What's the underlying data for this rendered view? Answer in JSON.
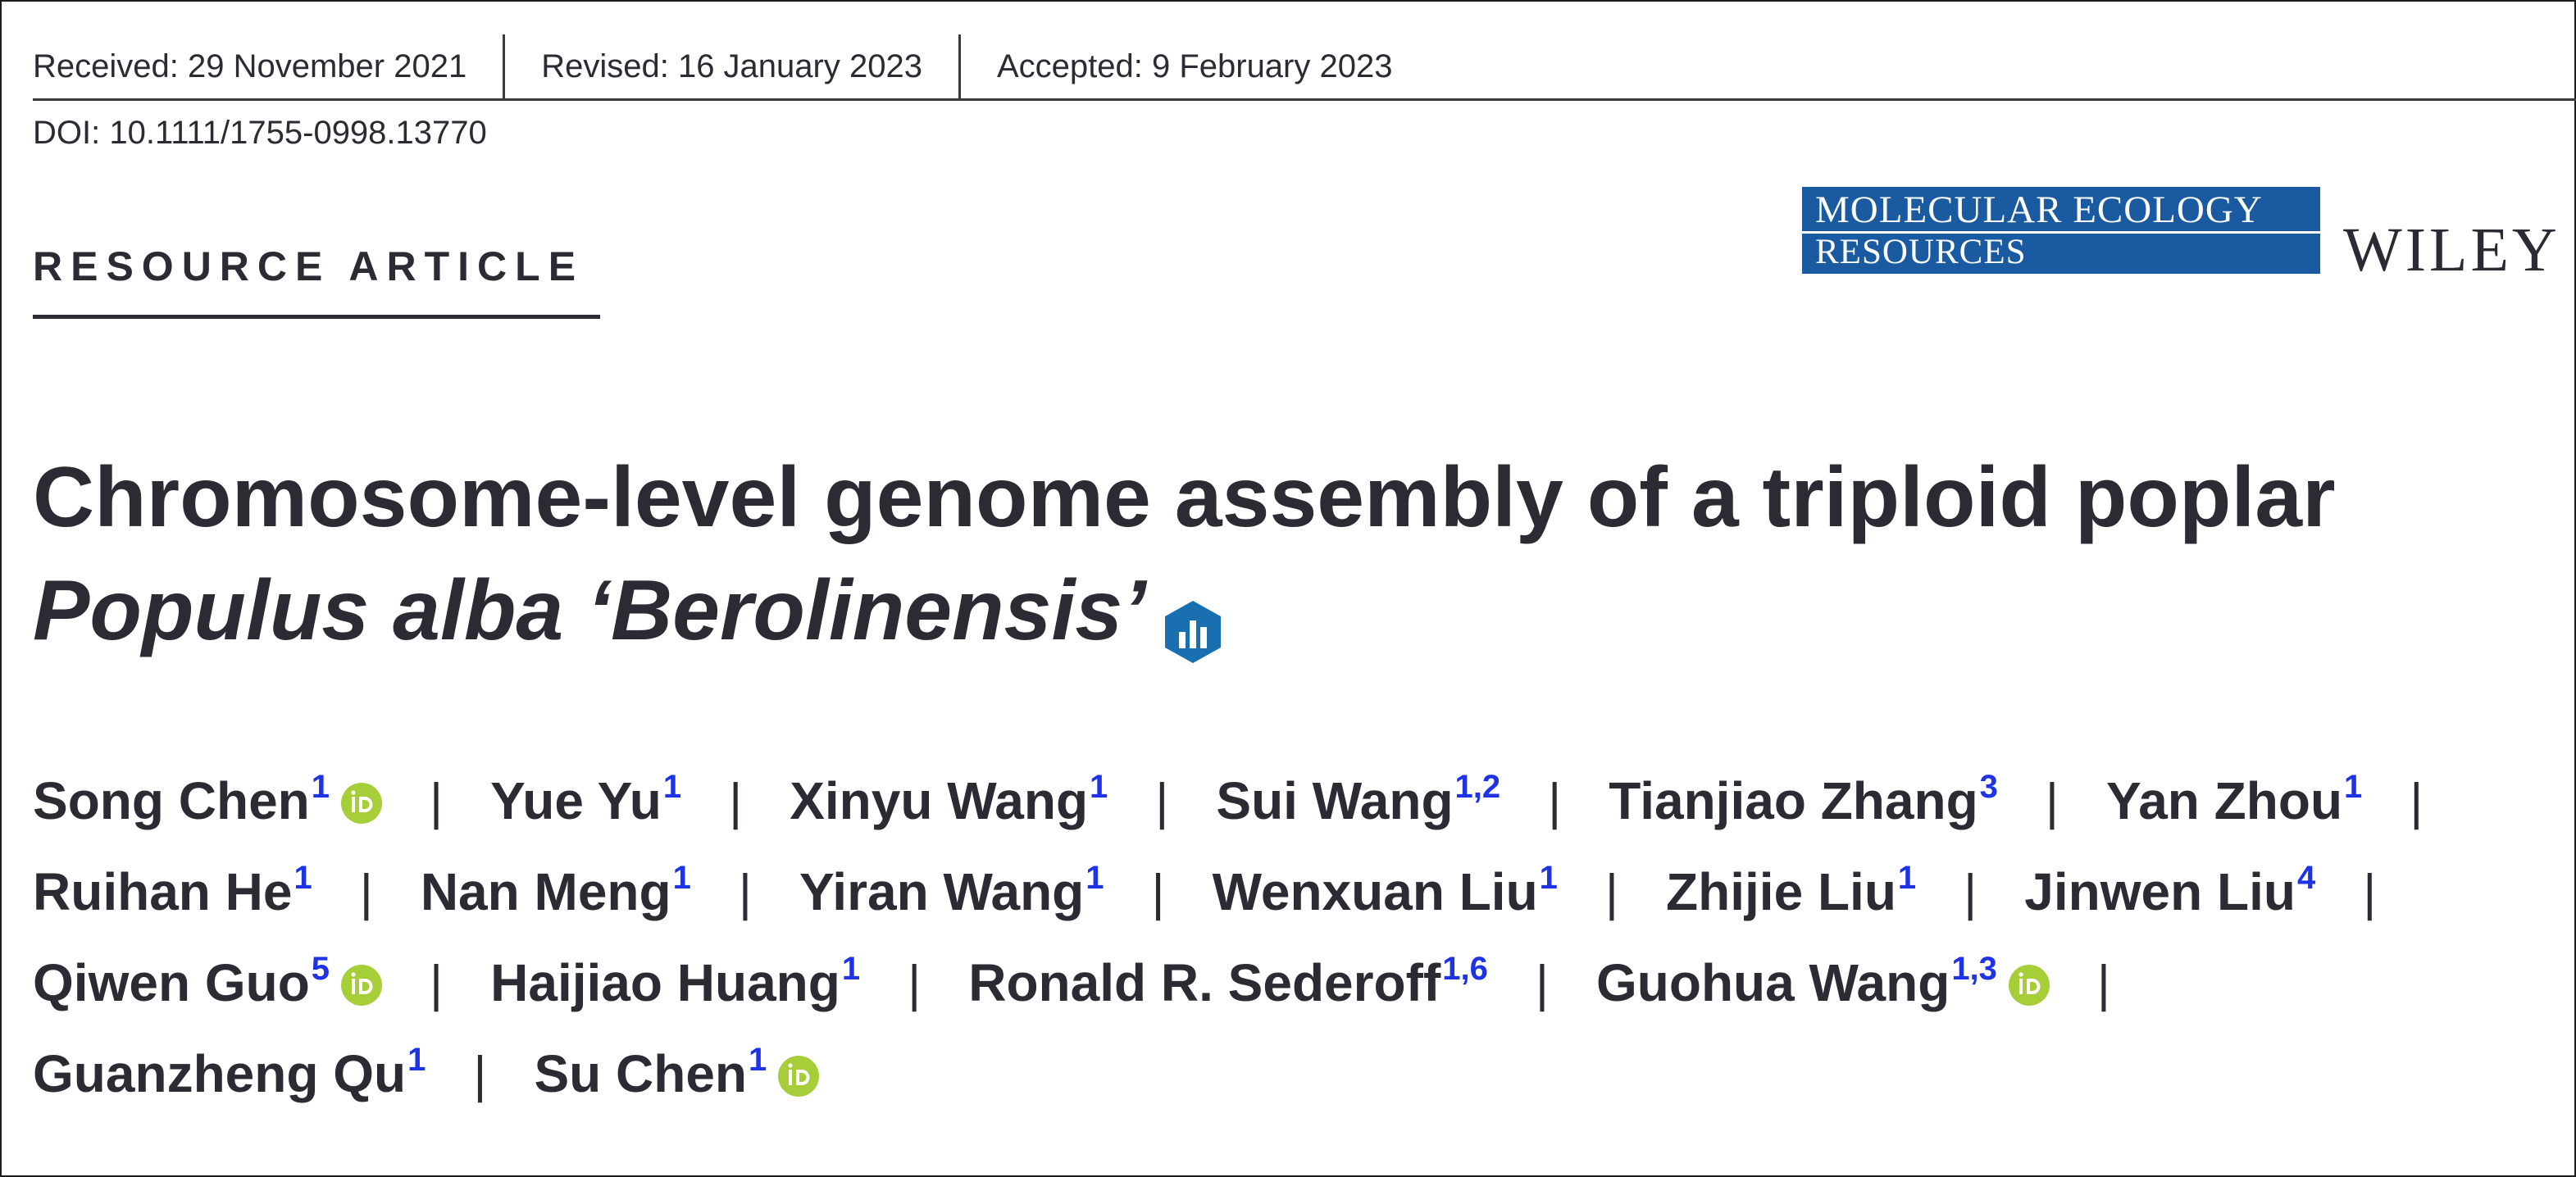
{
  "dates": {
    "received": "Received: 29 November 2021",
    "revised": "Revised: 16 January 2023",
    "accepted": "Accepted: 9 February 2023"
  },
  "doi": "DOI: 10.1111/1755-0998.13770",
  "article_type": "RESOURCE ARTICLE",
  "journal": {
    "line1": "MOLECULAR ECOLOGY",
    "line2": "RESOURCES"
  },
  "publisher": "WILEY",
  "title": {
    "line1": "Chromosome-level genome assembly of a triploid poplar",
    "line2": "Populus alba ‘Berolinensis’"
  },
  "separator": "|",
  "authors": [
    [
      {
        "name": "Song Chen",
        "aff": "1",
        "orcid": true
      },
      {
        "name": "Yue Yu",
        "aff": "1",
        "orcid": false
      },
      {
        "name": "Xinyu Wang",
        "aff": "1",
        "orcid": false
      },
      {
        "name": "Sui Wang",
        "aff": "1,2",
        "orcid": false
      },
      {
        "name": "Tianjiao Zhang",
        "aff": "3",
        "orcid": false
      },
      {
        "name": "Yan Zhou",
        "aff": "1",
        "orcid": false
      }
    ],
    [
      {
        "name": "Ruihan He",
        "aff": "1",
        "orcid": false
      },
      {
        "name": "Nan Meng",
        "aff": "1",
        "orcid": false
      },
      {
        "name": "Yiran Wang",
        "aff": "1",
        "orcid": false
      },
      {
        "name": "Wenxuan Liu",
        "aff": "1",
        "orcid": false
      },
      {
        "name": "Zhijie Liu",
        "aff": "1",
        "orcid": false
      },
      {
        "name": "Jinwen Liu",
        "aff": "4",
        "orcid": false
      }
    ],
    [
      {
        "name": "Qiwen Guo",
        "aff": "5",
        "orcid": true
      },
      {
        "name": "Haijiao Huang",
        "aff": "1",
        "orcid": false
      },
      {
        "name": "Ronald R. Sederoff",
        "aff": "1,6",
        "orcid": false
      },
      {
        "name": "Guohua Wang",
        "aff": "1,3",
        "orcid": true
      }
    ],
    [
      {
        "name": "Guanzheng Qu",
        "aff": "1",
        "orcid": false
      },
      {
        "name": "Su Chen",
        "aff": "1",
        "orcid": true
      }
    ]
  ],
  "icons": {
    "orcid": "orcid-icon",
    "open_data": "open-data-badge-icon"
  },
  "colors": {
    "text": "#2b2b33",
    "affiliation": "#1f33e6",
    "orcid": "#a6ce39",
    "journal": "#1a5aa0",
    "badge": "#1a6fb0"
  }
}
